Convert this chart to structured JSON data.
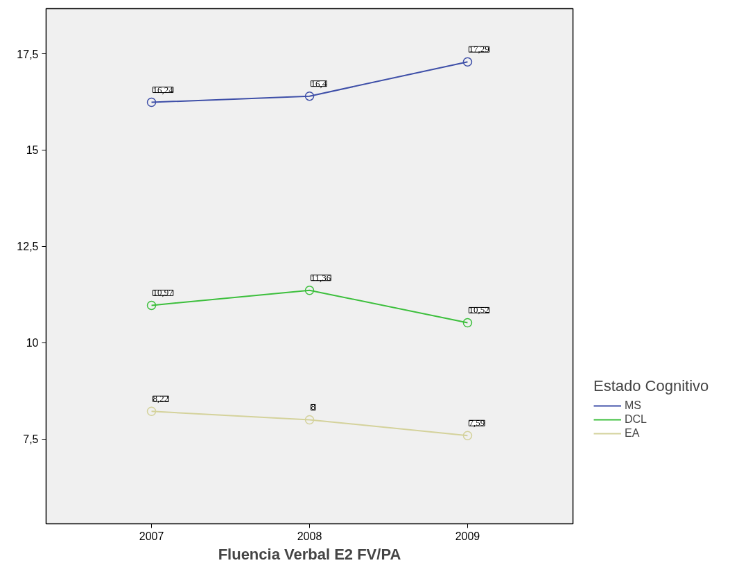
{
  "chart_data": {
    "type": "line",
    "xlabel": "Fluencia Verbal E2 FV/PA",
    "legend_title": "Estado Cognitivo",
    "legend": "right",
    "grid": false,
    "marker": "circle",
    "line_style": "solid",
    "categories": [
      "2007",
      "2008",
      "2009"
    ],
    "ylim": [
      5.3,
      18.67
    ],
    "yticks": [
      {
        "value": 7.5,
        "label": "7,5"
      },
      10,
      {
        "value": 12.5,
        "label": "12,5"
      },
      15,
      {
        "value": 17.5,
        "label": "17,5"
      }
    ],
    "series": [
      {
        "name": "MS",
        "color": "#3e4fa8",
        "values": [
          16.24,
          16.4,
          17.29
        ],
        "value_labels": [
          "16,24",
          "16,4",
          "17,29"
        ]
      },
      {
        "name": "DCL",
        "color": "#3cbf3c",
        "values": [
          10.97,
          11.36,
          10.52
        ],
        "value_labels": [
          "10,97",
          "11,36",
          "10,52"
        ]
      },
      {
        "name": "EA",
        "color": "#d4d29b",
        "values": [
          8.22,
          8,
          7.59
        ],
        "value_labels": [
          "8,22",
          "8",
          "7,59"
        ]
      }
    ]
  }
}
